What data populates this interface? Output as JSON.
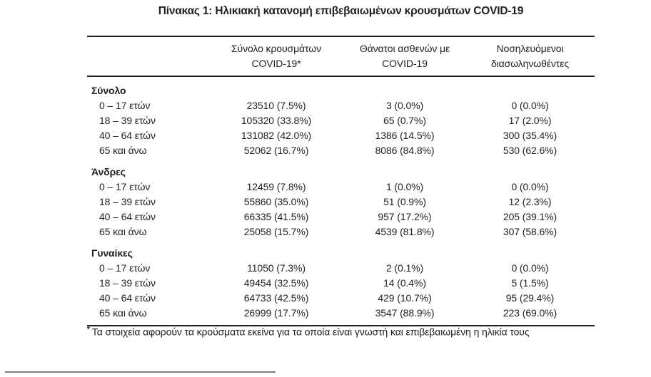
{
  "title": "Πίνακας 1: Ηλικιακή κατανομή επιβεβαιωμένων κρουσμάτων COVID-19",
  "table": {
    "columns": {
      "cases": {
        "line1": "Σύνολο κρουσμάτων",
        "line2": "COVID-19*"
      },
      "deaths": {
        "line1": "Θάνατοι ασθενών με",
        "line2": "COVID-19"
      },
      "intubated": {
        "line1": "Νοσηλευόμενοι",
        "line2": "διασωληνωθέντες"
      }
    },
    "sections": [
      {
        "label": "Σύνολο",
        "rows": [
          {
            "age": "0 – 17 ετών",
            "cases": "23510 (7.5%)",
            "deaths": "3 (0.0%)",
            "intubated": "0 (0.0%)"
          },
          {
            "age": "18 – 39 ετών",
            "cases": "105320 (33.8%)",
            "deaths": "65 (0.7%)",
            "intubated": "17 (2.0%)"
          },
          {
            "age": "40 – 64 ετών",
            "cases": "131082 (42.0%)",
            "deaths": "1386 (14.5%)",
            "intubated": "300 (35.4%)"
          },
          {
            "age": "65 και άνω",
            "cases": "52062 (16.7%)",
            "deaths": "8086 (84.8%)",
            "intubated": "530 (62.6%)"
          }
        ]
      },
      {
        "label": "Άνδρες",
        "rows": [
          {
            "age": "0 – 17 ετών",
            "cases": "12459 (7.8%)",
            "deaths": "1 (0.0%)",
            "intubated": "0 (0.0%)"
          },
          {
            "age": "18 – 39 ετών",
            "cases": "55860 (35.0%)",
            "deaths": "51 (0.9%)",
            "intubated": "12 (2.3%)"
          },
          {
            "age": "40 – 64 ετών",
            "cases": "66335 (41.5%)",
            "deaths": "957 (17.2%)",
            "intubated": "205 (39.1%)"
          },
          {
            "age": "65 και άνω",
            "cases": "25058 (15.7%)",
            "deaths": "4539 (81.8%)",
            "intubated": "307 (58.6%)"
          }
        ]
      },
      {
        "label": "Γυναίκες",
        "rows": [
          {
            "age": "0 – 17 ετών",
            "cases": "11050 (7.3%)",
            "deaths": "2 (0.1%)",
            "intubated": "0 (0.0%)"
          },
          {
            "age": "18 – 39 ετών",
            "cases": "49454 (32.5%)",
            "deaths": "14 (0.4%)",
            "intubated": "5 (1.5%)"
          },
          {
            "age": "40 – 64 ετών",
            "cases": "64733 (42.5%)",
            "deaths": "429 (10.7%)",
            "intubated": "95 (29.4%)"
          },
          {
            "age": "65 και άνω",
            "cases": "26999 (17.7%)",
            "deaths": "3547 (88.9%)",
            "intubated": "223 (69.0%)"
          }
        ]
      }
    ]
  },
  "footnote": {
    "marker": "*",
    "text": "Τα στοιχεία αφορούν τα κρούσματα εκείνα για τα οποία είναι γνωστή και επιβεβαιωμένη η ηλικία τους"
  },
  "colors": {
    "text": "#231f20",
    "rule": "#231f20",
    "footer_rule": "#7f7f7f"
  }
}
